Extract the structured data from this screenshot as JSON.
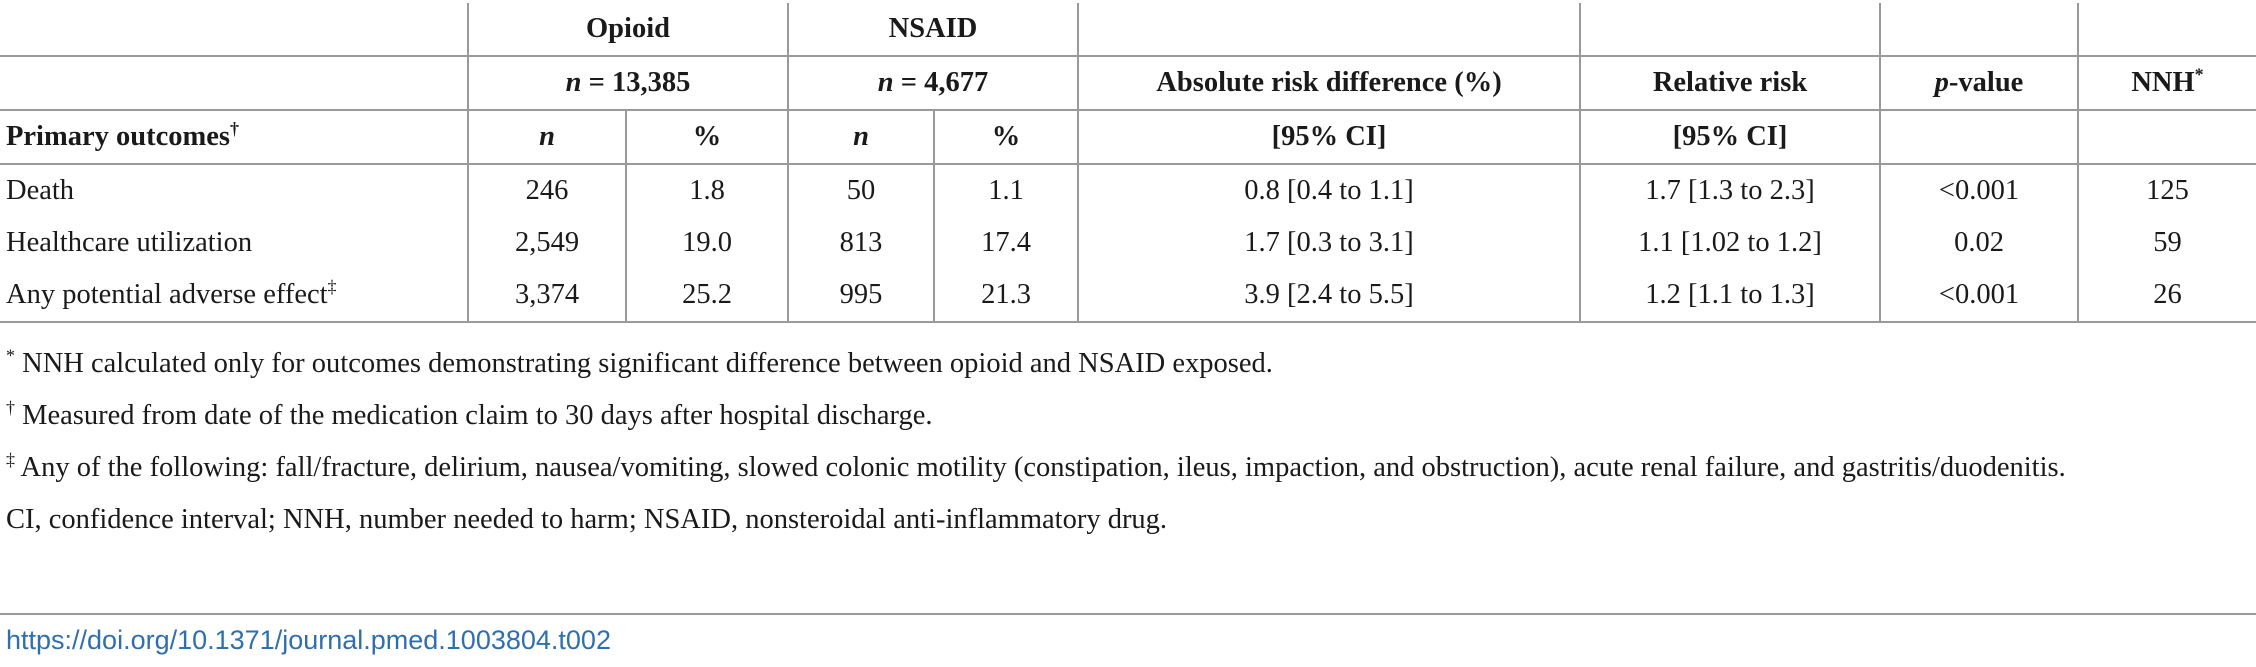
{
  "table": {
    "groups": {
      "opioid": "Opioid",
      "opioid_n": "n = 13,385",
      "nsaid": "NSAID",
      "nsaid_n": "n = 4,677"
    },
    "headers": {
      "ard": "Absolute risk difference (%)",
      "ard_ci": "[95% CI]",
      "rr": "Relative risk",
      "rr_ci": "[95% CI]",
      "p": "p-value",
      "nnh": "NNH",
      "nnh_mark": "*",
      "primary": "Primary outcomes",
      "primary_mark": "†",
      "n1": "n",
      "pct1": "%",
      "n2": "n",
      "pct2": "%"
    },
    "rows": [
      {
        "label": "Death",
        "mark": "",
        "on": "246",
        "op": "1.8",
        "nn": "50",
        "np": "1.1",
        "ard": "0.8 [0.4 to 1.1]",
        "rr": "1.7 [1.3 to 2.3]",
        "p": "<0.001",
        "nnh": "125"
      },
      {
        "label": "Healthcare utilization",
        "mark": "",
        "on": "2,549",
        "op": "19.0",
        "nn": "813",
        "np": "17.4",
        "ard": "1.7 [0.3 to 3.1]",
        "rr": "1.1 [1.02 to 1.2]",
        "p": "0.02",
        "nnh": "59"
      },
      {
        "label": "Any potential adverse effect",
        "mark": "‡",
        "on": "3,374",
        "op": "25.2",
        "nn": "995",
        "np": "21.3",
        "ard": "3.9 [2.4 to 5.5]",
        "rr": "1.2 [1.1 to 1.3]",
        "p": "<0.001",
        "nnh": "26"
      }
    ]
  },
  "footnotes": [
    {
      "mark": "*",
      "text": " NNH calculated only for outcomes demonstrating significant difference between opioid and NSAID exposed."
    },
    {
      "mark": "†",
      "text": " Measured from date of the medication claim to 30 days after hospital discharge."
    },
    {
      "mark": "‡",
      "text": " Any of the following: fall/fracture, delirium, nausea/vomiting, slowed colonic motility (constipation, ileus, impaction, and obstruction), acute renal failure, and gastritis/duodenitis."
    },
    {
      "mark": "",
      "text": "CI, confidence interval; NNH, number needed to harm; NSAID, nonsteroidal anti-inflammatory drug."
    }
  ],
  "doi": "https://doi.org/10.1371/journal.pmed.1003804.t002"
}
